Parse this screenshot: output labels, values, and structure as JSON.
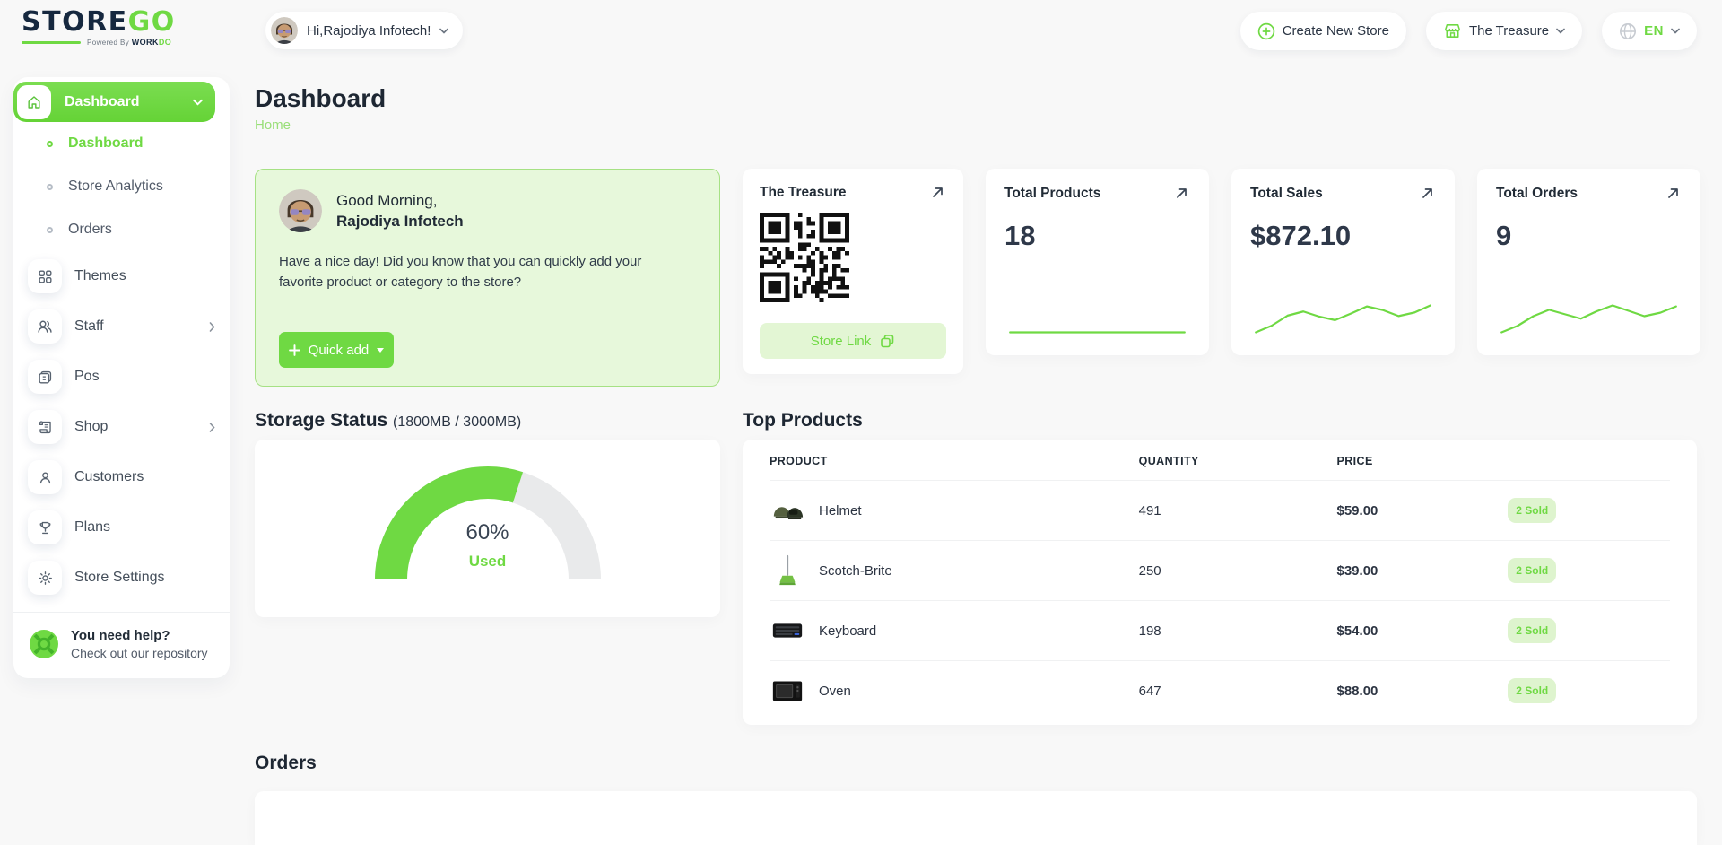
{
  "colors": {
    "primary": "#6fd943",
    "primary_light_bg": "#e7f8db",
    "badge_bg": "#def4ce",
    "dark_text": "#212b36",
    "navy_logo": "#16283f"
  },
  "brand": {
    "logo_primary": "STORE",
    "logo_accent": "GO",
    "powered_prefix": "Powered By ",
    "powered_brand": "WORK",
    "powered_brand_accent": "DO"
  },
  "header": {
    "user_greeting": "Hi,Rajodiya Infotech!",
    "create_store_label": "Create New Store",
    "store_selector_label": "The Treasure",
    "language_label": "EN"
  },
  "sidebar": {
    "group_label": "Dashboard",
    "sub_items": [
      {
        "label": "Dashboard",
        "active": true
      },
      {
        "label": "Store Analytics",
        "active": false
      },
      {
        "label": "Orders",
        "active": false
      }
    ],
    "items": [
      {
        "label": "Themes",
        "icon": "themes-grid-icon",
        "has_submenu": false
      },
      {
        "label": "Staff",
        "icon": "staff-users-icon",
        "has_submenu": true
      },
      {
        "label": "Pos",
        "icon": "pos-icon",
        "has_submenu": false
      },
      {
        "label": "Shop",
        "icon": "shop-receipt-icon",
        "has_submenu": true
      },
      {
        "label": "Customers",
        "icon": "customer-icon",
        "has_submenu": false
      },
      {
        "label": "Plans",
        "icon": "trophy-icon",
        "has_submenu": false
      },
      {
        "label": "Store Settings",
        "icon": "gear-icon",
        "has_submenu": false
      }
    ],
    "help": {
      "title": "You need help?",
      "subtitle": "Check out our repository"
    }
  },
  "page": {
    "title": "Dashboard",
    "breadcrumb": "Home"
  },
  "greeting_card": {
    "line1": "Good Morning,",
    "line2": "Rajodiya Infotech",
    "message": "Have a nice day! Did you know that you can quickly add your favorite product or category to the store?",
    "quick_add_label": "Quick add"
  },
  "store_card": {
    "title": "The Treasure",
    "store_link_label": "Store Link"
  },
  "stats": [
    {
      "title": "Total Products",
      "value": "18",
      "sparkline": [
        3,
        3,
        3,
        3,
        3,
        3,
        3,
        3,
        3,
        3
      ]
    },
    {
      "title": "Total Sales",
      "value": "$872.10",
      "sparkline": [
        1.5,
        2.8,
        4.8,
        5.6,
        4.6,
        3.9,
        5.2,
        6.6,
        5.9,
        4.7,
        5.4,
        6.8
      ]
    },
    {
      "title": "Total Orders",
      "value": "9",
      "sparkline": [
        1.2,
        2.5,
        4.5,
        5.8,
        4.9,
        4.0,
        5.5,
        6.7,
        5.6,
        4.5,
        5.2,
        6.5
      ]
    }
  ],
  "storage": {
    "title": "Storage Status",
    "subtitle": "(1800MB / 3000MB)",
    "percent": 60,
    "percent_label": "60%",
    "used_label": "Used"
  },
  "top_products": {
    "title": "Top Products",
    "headers": [
      "PRODUCT",
      "QUANTITY",
      "PRICE",
      ""
    ],
    "rows": [
      {
        "name": "Helmet",
        "quantity": "491",
        "price": "$59.00",
        "badge": "2 Sold"
      },
      {
        "name": "Scotch-Brite",
        "quantity": "250",
        "price": "$39.00",
        "badge": "2 Sold"
      },
      {
        "name": "Keyboard",
        "quantity": "198",
        "price": "$54.00",
        "badge": "2 Sold"
      },
      {
        "name": "Oven",
        "quantity": "647",
        "price": "$88.00",
        "badge": "2 Sold"
      }
    ]
  },
  "orders_section": {
    "title": "Orders"
  }
}
